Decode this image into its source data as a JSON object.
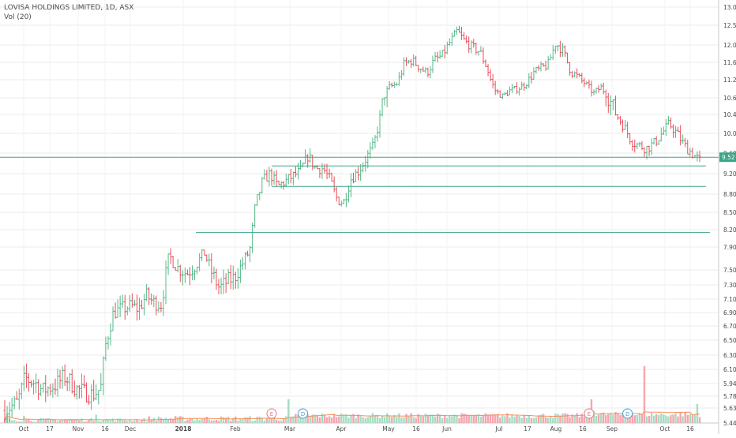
{
  "header": {
    "title": "LOVISA HOLDINGS LIMITED, 1D, ASX",
    "indicator": "Vol (20)"
  },
  "colors": {
    "up": "#53b987",
    "down": "#eb4d5c",
    "up_volume": "#a8dcc3",
    "down_volume": "#f5a6ae",
    "hline": "#3ba488",
    "volume_ma": "#f4905e",
    "axis_text": "#4a4a4a",
    "grid": "#ebebeb",
    "price_tag_bg": "#3ba488",
    "marker_e": "#e57b86",
    "marker_d": "#4a9ed8"
  },
  "chart_data": {
    "type": "ohlc",
    "x_ticks": [
      "Oct",
      "17",
      "Nov",
      "16",
      "Dec",
      "2018",
      "Feb",
      "Mar",
      "Apr",
      "May",
      "16",
      "Jun",
      "Jul",
      "17",
      "Aug",
      "16",
      "Sep",
      "Oct",
      "16"
    ],
    "y_ticks": [
      "13.00",
      "12.50",
      "12.00",
      "11.60",
      "11.20",
      "10.60",
      "10.40",
      "10.00",
      "9.60",
      "9.20",
      "8.80",
      "8.50",
      "8.20",
      "7.90",
      "7.50",
      "7.30",
      "7.10",
      "6.90",
      "6.70",
      "6.50",
      "6.30",
      "6.10",
      "5.94",
      "5.78",
      "5.63",
      "5.44"
    ],
    "y_range": [
      5.44,
      13.0
    ],
    "last_price": "9.52",
    "horizontal_lines": [
      9.52,
      9.35,
      8.95,
      8.15
    ],
    "close_path": [
      [
        0,
        5.6
      ],
      [
        5,
        5.7
      ],
      [
        8,
        6.0
      ],
      [
        12,
        5.95
      ],
      [
        15,
        5.85
      ],
      [
        20,
        5.92
      ],
      [
        24,
        6.02
      ],
      [
        28,
        5.88
      ],
      [
        32,
        5.82
      ],
      [
        35,
        5.8
      ],
      [
        38,
        5.88
      ],
      [
        40,
        6.45
      ],
      [
        43,
        6.9
      ],
      [
        46,
        6.95
      ],
      [
        50,
        7.0
      ],
      [
        53,
        6.95
      ],
      [
        56,
        7.15
      ],
      [
        59,
        7.05
      ],
      [
        62,
        7.02
      ],
      [
        65,
        7.75
      ],
      [
        68,
        7.55
      ],
      [
        72,
        7.45
      ],
      [
        75,
        7.55
      ],
      [
        79,
        7.8
      ],
      [
        82,
        7.45
      ],
      [
        85,
        7.25
      ],
      [
        88,
        7.35
      ],
      [
        91,
        7.4
      ],
      [
        94,
        7.6
      ],
      [
        97,
        7.85
      ],
      [
        99,
        8.55
      ],
      [
        102,
        9.05
      ],
      [
        105,
        9.2
      ],
      [
        108,
        8.95
      ],
      [
        111,
        9.05
      ],
      [
        114,
        9.15
      ],
      [
        117,
        9.25
      ],
      [
        120,
        9.55
      ],
      [
        123,
        9.3
      ],
      [
        126,
        9.3
      ],
      [
        129,
        9.05
      ],
      [
        131,
        8.75
      ],
      [
        134,
        8.65
      ],
      [
        137,
        9.1
      ],
      [
        140,
        9.25
      ],
      [
        143,
        9.5
      ],
      [
        146,
        9.75
      ],
      [
        149,
        10.45
      ],
      [
        152,
        10.95
      ],
      [
        155,
        11.05
      ],
      [
        158,
        11.55
      ],
      [
        161,
        11.65
      ],
      [
        164,
        11.5
      ],
      [
        167,
        11.35
      ],
      [
        170,
        11.65
      ],
      [
        173,
        11.75
      ],
      [
        176,
        12.05
      ],
      [
        179,
        12.35
      ],
      [
        182,
        12.1
      ],
      [
        185,
        11.95
      ],
      [
        188,
        11.85
      ],
      [
        191,
        11.45
      ],
      [
        194,
        10.85
      ],
      [
        197,
        10.65
      ],
      [
        200,
        10.85
      ],
      [
        203,
        10.9
      ],
      [
        206,
        11.05
      ],
      [
        209,
        11.35
      ],
      [
        212,
        11.45
      ],
      [
        215,
        11.55
      ],
      [
        218,
        12.05
      ],
      [
        221,
        11.85
      ],
      [
        224,
        11.4
      ],
      [
        227,
        11.25
      ],
      [
        230,
        11.05
      ],
      [
        233,
        10.75
      ],
      [
        236,
        10.95
      ],
      [
        239,
        10.6
      ],
      [
        242,
        10.4
      ],
      [
        245,
        10.15
      ],
      [
        248,
        9.85
      ],
      [
        251,
        9.75
      ],
      [
        254,
        9.7
      ],
      [
        257,
        9.8
      ],
      [
        260,
        10.0
      ],
      [
        263,
        10.2
      ],
      [
        266,
        10.0
      ],
      [
        269,
        9.75
      ],
      [
        272,
        9.6
      ],
      [
        275,
        9.45
      ]
    ],
    "volume_spikes": [
      {
        "i": 1,
        "v": 0.4
      },
      {
        "i": 8,
        "v": 0.3
      },
      {
        "i": 38,
        "v": 0.35
      },
      {
        "i": 118,
        "v": 1.0
      },
      {
        "i": 128,
        "v": 0.35
      },
      {
        "i": 160,
        "v": 0.3
      },
      {
        "i": 174,
        "v": 0.28
      },
      {
        "i": 244,
        "v": 1.0
      },
      {
        "i": 245,
        "v": 0.5
      },
      {
        "i": 266,
        "v": 2.4
      },
      {
        "i": 288,
        "v": 0.8
      }
    ],
    "markers": [
      {
        "label": "E",
        "xi": 111,
        "kind": "earnings"
      },
      {
        "label": "D",
        "xi": 124,
        "kind": "dividend"
      },
      {
        "label": "E",
        "xi": 243,
        "kind": "earnings"
      },
      {
        "label": "D",
        "xi": 259,
        "kind": "dividend"
      }
    ]
  }
}
